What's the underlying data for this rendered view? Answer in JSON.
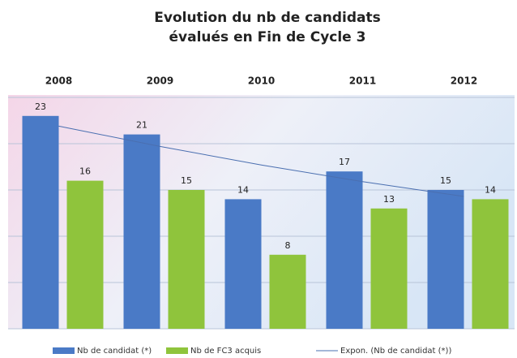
{
  "chart_data": {
    "type": "bar",
    "title": "Evolution du nb de candidats",
    "subtitle": "évalués en Fin de Cycle 3",
    "categories": [
      "2008",
      "2009",
      "2010",
      "2011",
      "2012"
    ],
    "series": [
      {
        "name": "Nb de candidat (*)",
        "type": "bar",
        "color": "#4a7ac6",
        "values": [
          23,
          21,
          14,
          17,
          15
        ]
      },
      {
        "name": "Nb de FC3 acquis",
        "type": "bar",
        "color": "#8fc43c",
        "values": [
          16,
          15,
          8,
          13,
          14
        ]
      },
      {
        "name": "Expon. (Nb de candidat (*))",
        "type": "line",
        "color": "#4a6fb0",
        "values": [
          21.9,
          19.7,
          17.7,
          15.9,
          14.3
        ]
      }
    ],
    "ylim": [
      0,
      25
    ],
    "yticks": [
      0,
      5,
      10,
      15,
      20,
      25
    ],
    "grid": true,
    "legend": "bottom"
  }
}
